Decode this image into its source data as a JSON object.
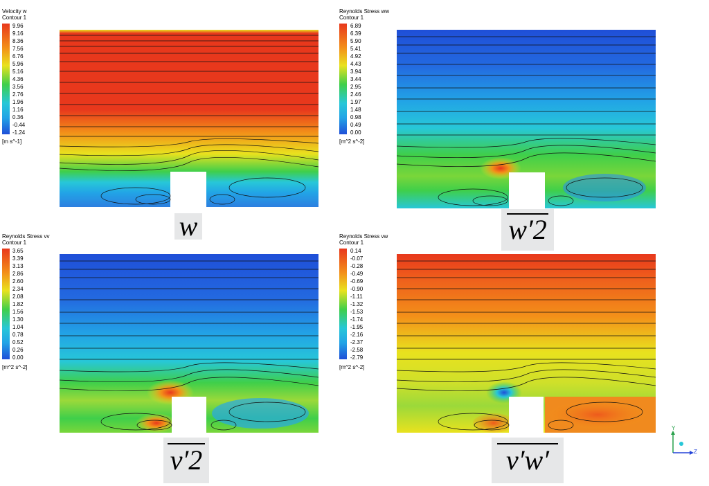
{
  "panels": [
    {
      "id": "velocity-w",
      "title": "Velocity w",
      "subtitle": "Contour 1",
      "unit": "[m s^-1]",
      "ticks": [
        "9.96",
        "9.16",
        "8.36",
        "7.56",
        "6.76",
        "5.96",
        "5.16",
        "4.36",
        "3.56",
        "2.76",
        "1.96",
        "1.16",
        "0.36",
        "-0.44",
        "-1.24"
      ],
      "label": "w",
      "label_overline": false
    },
    {
      "id": "reynolds-ww",
      "title": "Reynolds Stress ww",
      "subtitle": "Contour 1",
      "unit": "[m^2 s^-2]",
      "ticks": [
        "6.89",
        "6.39",
        "5.90",
        "5.41",
        "4.92",
        "4.43",
        "3.94",
        "3.44",
        "2.95",
        "2.46",
        "1.97",
        "1.48",
        "0.98",
        "0.49",
        "0.00"
      ],
      "label": "w′2",
      "label_overline": true
    },
    {
      "id": "reynolds-vv",
      "title": "Reynolds Stress vv",
      "subtitle": "Contour 1",
      "unit": "[m^2 s^-2]",
      "ticks": [
        "3.65",
        "3.39",
        "3.13",
        "2.86",
        "2.60",
        "2.34",
        "2.08",
        "1.82",
        "1.56",
        "1.30",
        "1.04",
        "0.78",
        "0.52",
        "0.26",
        "0.00"
      ],
      "label": "v′2",
      "label_overline": true
    },
    {
      "id": "reynolds-vw",
      "title": "Reynolds Stress vw",
      "subtitle": "Contour 1",
      "unit": "[m^2 s^-2]",
      "ticks": [
        "0.14",
        "-0.07",
        "-0.28",
        "-0.49",
        "-0.69",
        "-0.90",
        "-1.11",
        "-1.32",
        "-1.53",
        "-1.74",
        "-1.95",
        "-2.16",
        "-2.37",
        "-2.58",
        "-2.79"
      ],
      "label": "v′w′",
      "label_overline": true
    }
  ],
  "axes_triad": {
    "y": "Y",
    "z": "Z"
  },
  "colors": {
    "red": "#e8381c",
    "orange": "#f39019",
    "yellow": "#e9e21e",
    "green": "#3fcf4a",
    "cyan": "#27c7d8",
    "light_blue": "#22a4e6",
    "blue": "#1f4fd8"
  }
}
